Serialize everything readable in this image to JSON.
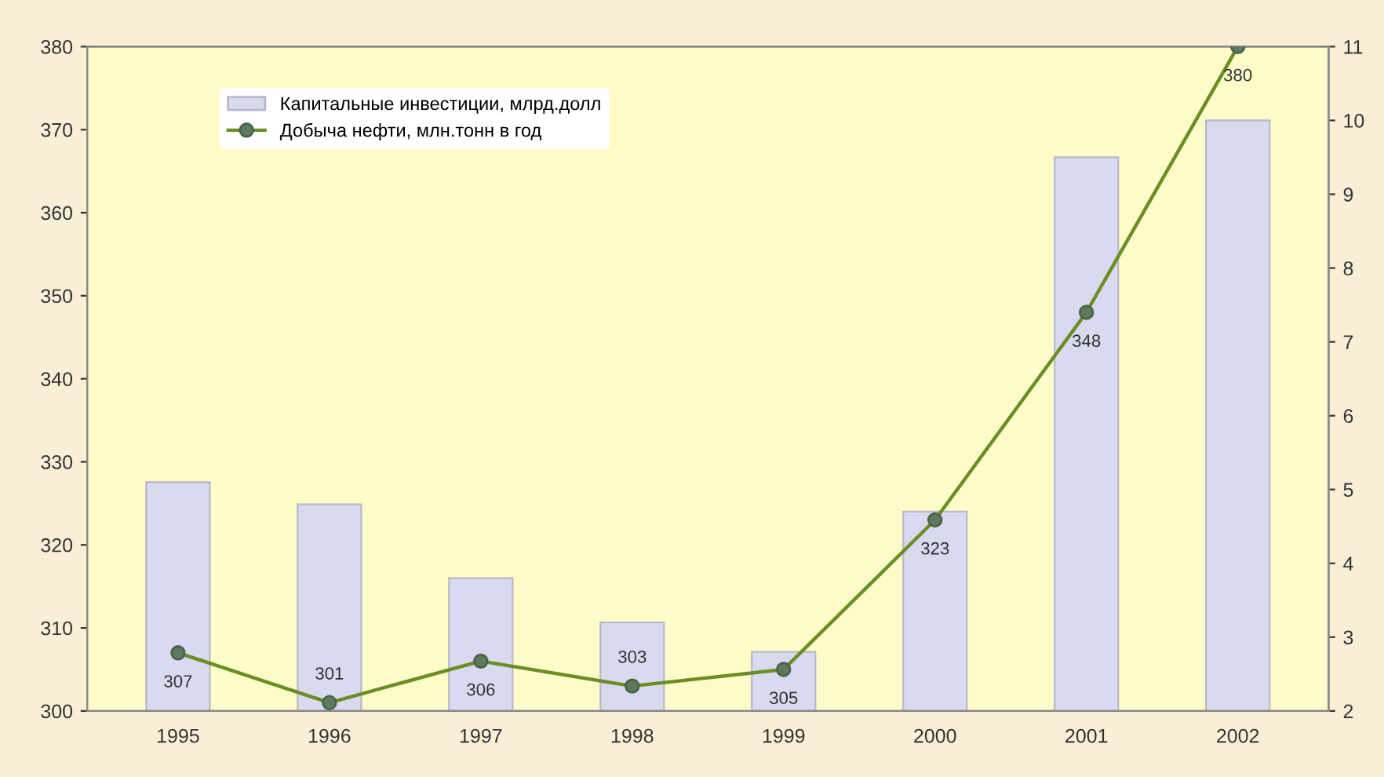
{
  "chart_data": {
    "type": "bar",
    "categories": [
      "1995",
      "1996",
      "1997",
      "1998",
      "1999",
      "2000",
      "2001",
      "2002"
    ],
    "series": [
      {
        "name": "Капитальные инвестиции, млрд.долл",
        "axis": "y2",
        "color": "#d9d9f0",
        "values": [
          5.1,
          4.8,
          3.8,
          3.2,
          2.8,
          4.7,
          9.5,
          10.0
        ]
      },
      {
        "name": "Добыча нефти, млн.тонн в год",
        "type": "line",
        "axis": "y",
        "color": "#6b8e23",
        "values": [
          307,
          301,
          306,
          303,
          305,
          323,
          348,
          380
        ],
        "data_labels": true
      }
    ],
    "ylim": [
      300,
      380
    ],
    "yticks": [
      300,
      310,
      320,
      330,
      340,
      350,
      360,
      370,
      380
    ],
    "y2lim": [
      2,
      11
    ],
    "y2ticks": [
      2,
      3,
      4,
      5,
      6,
      7,
      8,
      9,
      10,
      11
    ],
    "marker": "circle",
    "line_style": "solid",
    "grid": false,
    "legend": "top left"
  }
}
